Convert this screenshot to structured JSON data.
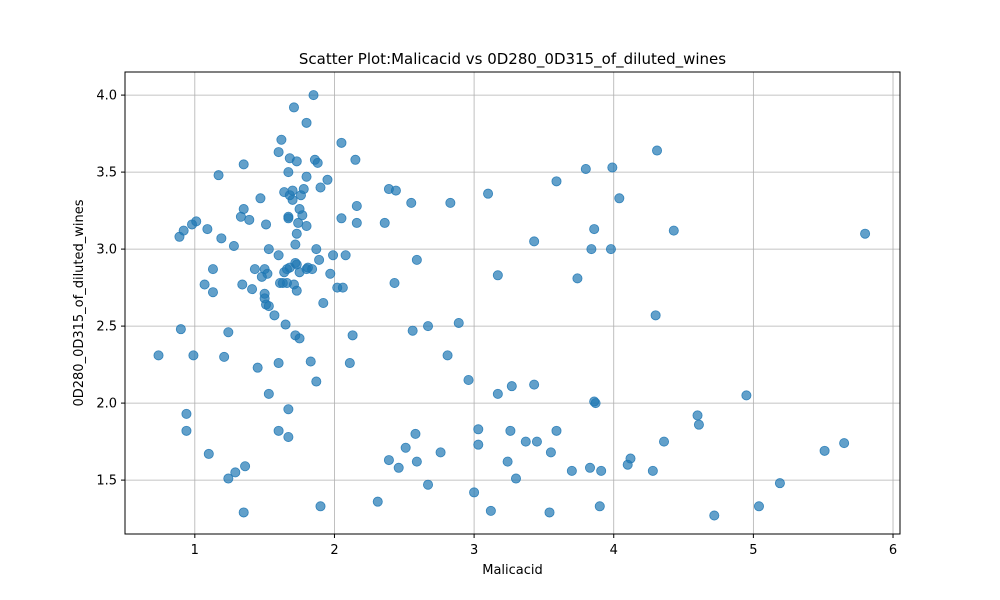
{
  "chart_data": {
    "type": "scatter",
    "title": "Scatter Plot:Malicacid vs 0D280_0D315_of_diluted_wines",
    "xlabel": "Malicacid",
    "ylabel": "0D280_0D315_of_diluted_wines",
    "xlim": [
      0.5,
      6.05
    ],
    "ylim": [
      1.15,
      4.15
    ],
    "xticks": [
      1,
      2,
      3,
      4,
      5,
      6
    ],
    "yticks": [
      1.5,
      2.0,
      2.5,
      3.0,
      3.5,
      4.0
    ],
    "ytick_labels": [
      "1.5",
      "2.0",
      "2.5",
      "3.0",
      "3.5",
      "4.0"
    ],
    "grid": true,
    "marker_color": "#1f77b4",
    "points": [
      [
        0.74,
        2.31
      ],
      [
        0.89,
        3.08
      ],
      [
        0.9,
        2.48
      ],
      [
        0.92,
        3.12
      ],
      [
        0.94,
        1.93
      ],
      [
        0.94,
        1.82
      ],
      [
        0.98,
        3.16
      ],
      [
        0.99,
        2.31
      ],
      [
        1.01,
        3.18
      ],
      [
        1.07,
        2.77
      ],
      [
        1.09,
        3.13
      ],
      [
        1.1,
        1.67
      ],
      [
        1.13,
        2.87
      ],
      [
        1.13,
        2.72
      ],
      [
        1.17,
        3.48
      ],
      [
        1.19,
        3.07
      ],
      [
        1.21,
        2.3
      ],
      [
        1.24,
        2.46
      ],
      [
        1.24,
        1.51
      ],
      [
        1.28,
        3.02
      ],
      [
        1.29,
        1.55
      ],
      [
        1.33,
        3.21
      ],
      [
        1.34,
        2.77
      ],
      [
        1.35,
        3.55
      ],
      [
        1.35,
        3.26
      ],
      [
        1.35,
        1.29
      ],
      [
        1.36,
        1.59
      ],
      [
        1.39,
        3.19
      ],
      [
        1.41,
        2.74
      ],
      [
        1.43,
        2.87
      ],
      [
        1.45,
        2.23
      ],
      [
        1.47,
        3.33
      ],
      [
        1.48,
        2.82
      ],
      [
        1.5,
        2.87
      ],
      [
        1.5,
        2.71
      ],
      [
        1.5,
        2.68
      ],
      [
        1.51,
        3.16
      ],
      [
        1.51,
        2.64
      ],
      [
        1.52,
        2.84
      ],
      [
        1.53,
        2.63
      ],
      [
        1.53,
        3.0
      ],
      [
        1.53,
        2.06
      ],
      [
        1.57,
        2.57
      ],
      [
        1.6,
        3.63
      ],
      [
        1.6,
        2.96
      ],
      [
        1.6,
        2.26
      ],
      [
        1.6,
        1.82
      ],
      [
        1.61,
        2.78
      ],
      [
        1.62,
        3.71
      ],
      [
        1.63,
        2.78
      ],
      [
        1.64,
        3.37
      ],
      [
        1.64,
        2.85
      ],
      [
        1.65,
        2.51
      ],
      [
        1.66,
        2.87
      ],
      [
        1.66,
        2.78
      ],
      [
        1.67,
        3.5
      ],
      [
        1.67,
        3.21
      ],
      [
        1.67,
        3.2
      ],
      [
        1.67,
        1.96
      ],
      [
        1.67,
        1.78
      ],
      [
        1.68,
        3.59
      ],
      [
        1.68,
        3.35
      ],
      [
        1.68,
        2.88
      ],
      [
        1.7,
        3.32
      ],
      [
        1.7,
        3.38
      ],
      [
        1.71,
        3.92
      ],
      [
        1.71,
        2.77
      ],
      [
        1.72,
        3.03
      ],
      [
        1.72,
        2.91
      ],
      [
        1.72,
        2.44
      ],
      [
        1.73,
        3.57
      ],
      [
        1.73,
        3.1
      ],
      [
        1.73,
        2.9
      ],
      [
        1.73,
        2.73
      ],
      [
        1.74,
        3.17
      ],
      [
        1.75,
        3.26
      ],
      [
        1.75,
        2.85
      ],
      [
        1.75,
        2.42
      ],
      [
        1.76,
        3.35
      ],
      [
        1.77,
        3.22
      ],
      [
        1.78,
        3.39
      ],
      [
        1.8,
        3.82
      ],
      [
        1.8,
        3.47
      ],
      [
        1.8,
        3.15
      ],
      [
        1.8,
        2.87
      ],
      [
        1.81,
        2.88
      ],
      [
        1.83,
        2.27
      ],
      [
        1.84,
        2.87
      ],
      [
        1.85,
        4.0
      ],
      [
        1.86,
        3.58
      ],
      [
        1.87,
        3.0
      ],
      [
        1.87,
        2.14
      ],
      [
        1.88,
        3.56
      ],
      [
        1.89,
        2.93
      ],
      [
        1.9,
        3.4
      ],
      [
        1.9,
        1.33
      ],
      [
        1.92,
        2.65
      ],
      [
        1.95,
        3.45
      ],
      [
        1.97,
        2.84
      ],
      [
        1.99,
        2.96
      ],
      [
        2.02,
        2.75
      ],
      [
        2.05,
        3.69
      ],
      [
        2.05,
        3.2
      ],
      [
        2.06,
        2.75
      ],
      [
        2.08,
        2.96
      ],
      [
        2.11,
        2.26
      ],
      [
        2.13,
        2.44
      ],
      [
        2.15,
        3.58
      ],
      [
        2.16,
        3.28
      ],
      [
        2.16,
        3.17
      ],
      [
        2.31,
        1.36
      ],
      [
        2.36,
        3.17
      ],
      [
        2.39,
        3.39
      ],
      [
        2.39,
        1.63
      ],
      [
        2.43,
        2.78
      ],
      [
        2.44,
        3.38
      ],
      [
        2.46,
        1.58
      ],
      [
        2.51,
        1.71
      ],
      [
        2.55,
        3.3
      ],
      [
        2.56,
        2.47
      ],
      [
        2.58,
        1.8
      ],
      [
        2.59,
        2.93
      ],
      [
        2.59,
        1.62
      ],
      [
        2.67,
        2.5
      ],
      [
        2.67,
        1.47
      ],
      [
        2.76,
        1.68
      ],
      [
        2.81,
        2.31
      ],
      [
        2.83,
        3.3
      ],
      [
        2.89,
        2.52
      ],
      [
        2.96,
        2.15
      ],
      [
        3.0,
        1.42
      ],
      [
        3.03,
        1.83
      ],
      [
        3.03,
        1.73
      ],
      [
        3.1,
        3.36
      ],
      [
        3.12,
        1.3
      ],
      [
        3.17,
        2.83
      ],
      [
        3.17,
        2.06
      ],
      [
        3.24,
        1.62
      ],
      [
        3.26,
        1.82
      ],
      [
        3.27,
        2.11
      ],
      [
        3.3,
        1.51
      ],
      [
        3.37,
        1.75
      ],
      [
        3.43,
        3.05
      ],
      [
        3.43,
        2.12
      ],
      [
        3.45,
        1.75
      ],
      [
        3.54,
        1.29
      ],
      [
        3.55,
        1.68
      ],
      [
        3.59,
        3.44
      ],
      [
        3.59,
        1.82
      ],
      [
        3.7,
        1.56
      ],
      [
        3.74,
        2.81
      ],
      [
        3.8,
        3.52
      ],
      [
        3.83,
        1.58
      ],
      [
        3.84,
        3.0
      ],
      [
        3.86,
        3.13
      ],
      [
        3.86,
        2.01
      ],
      [
        3.87,
        2.0
      ],
      [
        3.9,
        1.33
      ],
      [
        3.91,
        1.56
      ],
      [
        3.98,
        3.0
      ],
      [
        3.99,
        3.53
      ],
      [
        4.04,
        3.33
      ],
      [
        4.1,
        1.6
      ],
      [
        4.12,
        1.64
      ],
      [
        4.28,
        1.56
      ],
      [
        4.3,
        2.57
      ],
      [
        4.31,
        3.64
      ],
      [
        4.36,
        1.75
      ],
      [
        4.43,
        3.12
      ],
      [
        4.6,
        1.92
      ],
      [
        4.61,
        1.86
      ],
      [
        4.72,
        1.27
      ],
      [
        4.95,
        2.05
      ],
      [
        5.04,
        1.33
      ],
      [
        5.19,
        1.48
      ],
      [
        5.51,
        1.69
      ],
      [
        5.65,
        1.74
      ],
      [
        5.8,
        3.1
      ]
    ]
  }
}
